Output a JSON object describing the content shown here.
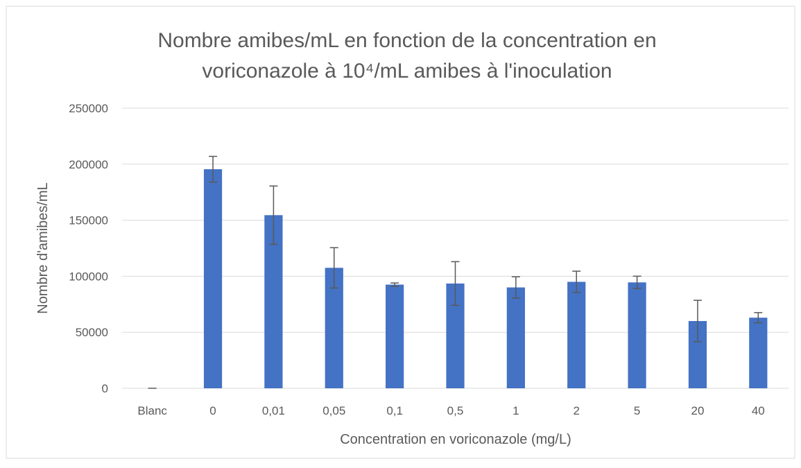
{
  "chart_data": {
    "type": "bar",
    "title": [
      "Nombre amibes/mL en fonction de la concentration en",
      "voriconazole à 10⁴/mL amibes à l'inoculation"
    ],
    "x_label": "Concentration en voriconazole (mg/L)",
    "y_label": "Nombre d'amibes/mL",
    "categories": [
      "Blanc",
      "0",
      "0,01",
      "0,05",
      "0,1",
      "0,5",
      "1",
      "2",
      "5",
      "20",
      "40"
    ],
    "values": [
      0,
      195500,
      154500,
      107500,
      92500,
      93500,
      90000,
      95000,
      94500,
      60000,
      63000
    ],
    "errors": [
      0,
      11500,
      26000,
      18000,
      1500,
      19500,
      9500,
      9500,
      5500,
      18500,
      4500
    ],
    "color": "#4472c4",
    "ylim": [
      0,
      250000
    ],
    "yticks": [
      0,
      50000,
      100000,
      150000,
      200000,
      250000
    ],
    "grid": true
  }
}
